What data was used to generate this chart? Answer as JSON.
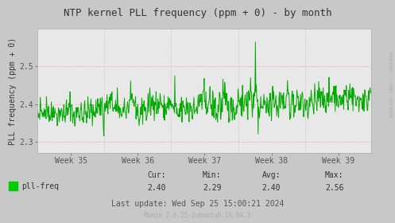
{
  "title": "NTP kernel PLL frequency (ppm + 0) - by month",
  "ylabel": "PLL frequency (ppm + 0)",
  "xlabel_ticks": [
    "Week 35",
    "Week 36",
    "Week 37",
    "Week 38",
    "Week 39"
  ],
  "ylim": [
    2.27,
    2.6
  ],
  "yticks": [
    2.3,
    2.4,
    2.5
  ],
  "line_color": "#00aa00",
  "bg_color": "#c8c8c8",
  "plot_bg_color": "#e8e8e8",
  "grid_color": "#ff8888",
  "vgrid_color": "#ddaaaa",
  "legend_label": "pll-freq",
  "legend_color": "#00cc00",
  "cur": "2.40",
  "min": "2.29",
  "avg": "2.40",
  "max": "2.56",
  "last_update": "Wed Sep 25 15:00:21 2024",
  "munin_version": "Munin 2.0.25-2ubuntu0.16.04.3",
  "rrdtool_label": "RRDTOOL / TOBI OETIKER",
  "n_points": 750,
  "seed": 42,
  "base_value": 2.375,
  "title_fontsize": 9,
  "axis_fontsize": 7,
  "tick_fontsize": 7,
  "legend_fontsize": 7,
  "footer_fontsize": 5.5
}
